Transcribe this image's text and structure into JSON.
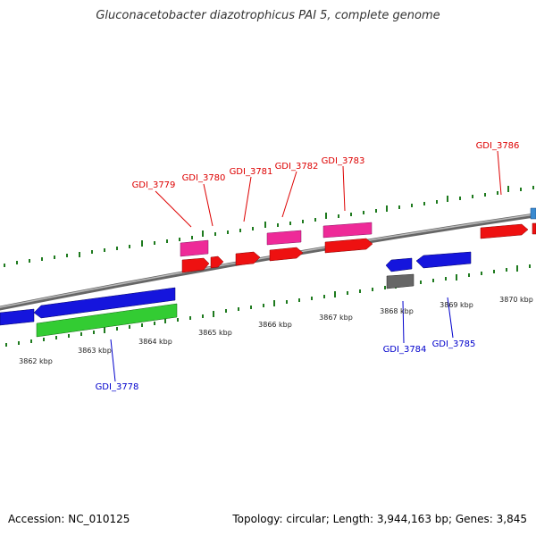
{
  "title": "Gluconacetobacter diazotrophicus PAI 5, complete genome",
  "footer": {
    "accession": "Accession: NC_010125",
    "topology": "Topology: circular; Length: 3,944,163 bp; Genes: 3,845"
  },
  "colors": {
    "forward_gene": "#ee1111",
    "reverse_gene": "#1515dd",
    "forward_rna": "#ee2a98",
    "reverse_rna": "#33cc33",
    "pseudo": "#666666",
    "other": "#3a8ad0",
    "backbone": "#888888",
    "tick": "#1e7a1e",
    "forward_label": "#dd0000",
    "reverse_label": "#0000cc"
  },
  "axis_labels": [
    "3862 kbp",
    "3863 kbp",
    "3864 kbp",
    "3865 kbp",
    "3866 kbp",
    "3867 kbp",
    "3868 kbp",
    "3869 kbp",
    "3870 kbp"
  ],
  "gene_labels": {
    "forward": [
      "GDI_3779",
      "GDI_3780",
      "GDI_3781",
      "GDI_3782",
      "GDI_3783",
      "GDI_3786"
    ],
    "reverse": [
      "GDI_3778",
      "GDI_3784",
      "GDI_3785"
    ]
  }
}
